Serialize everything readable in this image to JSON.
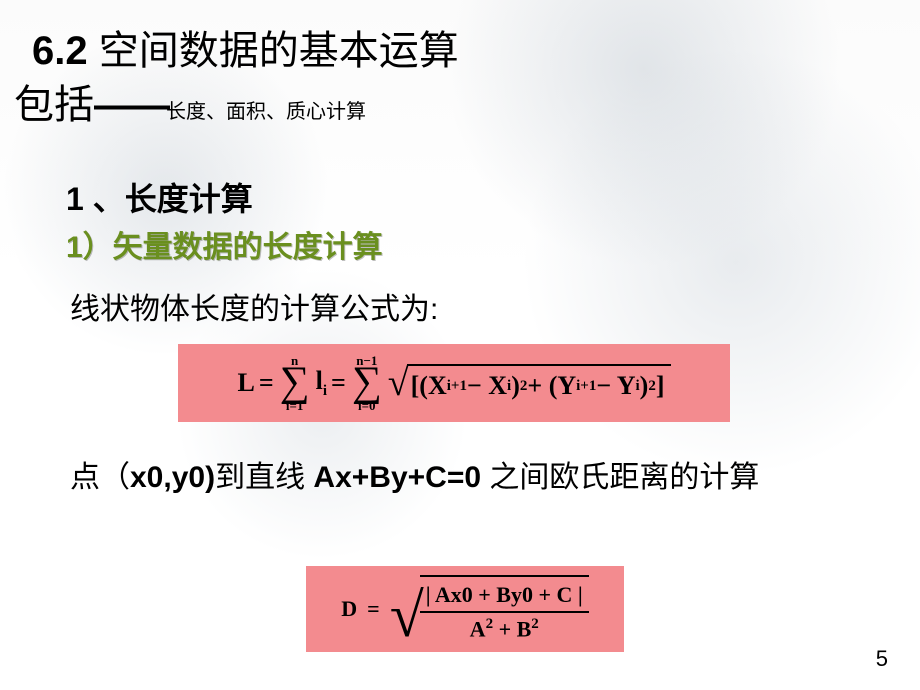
{
  "title": {
    "num": "6.2",
    "main": " 空间数据的基本运算"
  },
  "subline": {
    "prefix": "包括",
    "dash": "——",
    "small": "长度、面积、质心计算"
  },
  "h1": "1 、长度计算",
  "h2": "1）矢量数据的长度计算",
  "body1": "线状物体长度的计算公式为:",
  "body2_a": "点（",
  "body2_b": "x0,y0)",
  "body2_c": "到直线  ",
  "body2_d": "Ax+By+C=0",
  "body2_e": "  之间欧氏距离的计算",
  "formula1": {
    "L": "L",
    "sum1_top": "n",
    "sum1_bot": "i=1",
    "li": "l",
    "li_sub": "i",
    "sum2_top": "n−1",
    "sum2_bot": "i=0",
    "inside_a": "[(X",
    "inside_b": "i+1",
    "inside_c": " − X",
    "inside_d": "i",
    "inside_e": " )",
    "sq": "2",
    "inside_f": " + (Y",
    "inside_g": "i+1",
    "inside_h": " − Y",
    "inside_i": "i",
    "inside_j": " )",
    "inside_k": "]"
  },
  "formula2": {
    "D": "D",
    "num": "| Ax0 + By0 + C |",
    "den_a": "A",
    "den_b": "2",
    "den_c": " + B",
    "den_d": "2"
  },
  "colors": {
    "formula_bg": "#f38b8f",
    "h2_color": "#6a8f1f"
  },
  "pagenum": "5"
}
